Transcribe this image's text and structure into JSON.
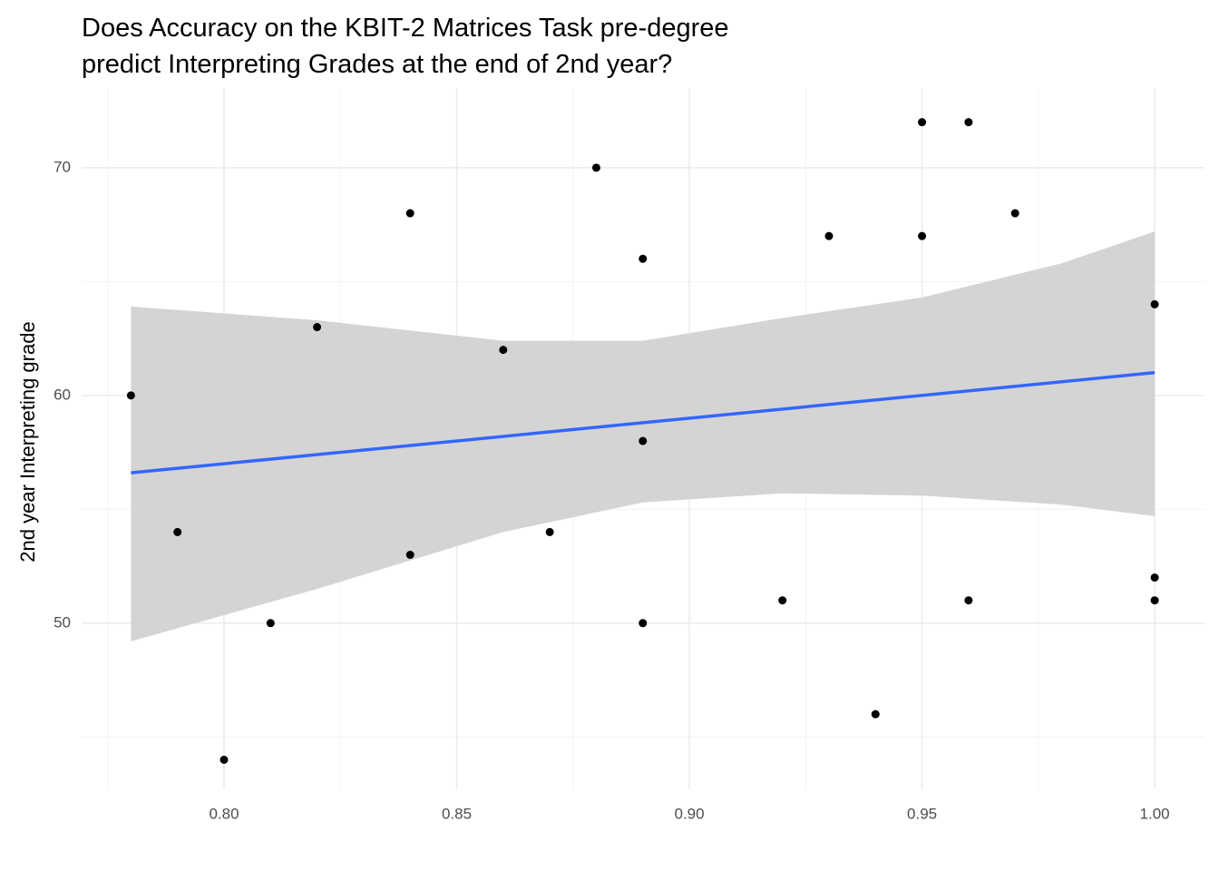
{
  "chart_data": {
    "type": "scatter",
    "title": [
      "Does Accuracy on the KBIT-2 Matrices Task pre-degree",
      "predict Interpreting Grades at the end of 2nd year?"
    ],
    "y_label": "2nd year Interpreting grade",
    "x": [
      0.78,
      0.79,
      0.8,
      0.81,
      0.82,
      0.84,
      0.84,
      0.86,
      0.87,
      0.88,
      0.89,
      0.89,
      0.89,
      0.92,
      0.93,
      0.94,
      0.95,
      0.95,
      0.96,
      0.96,
      0.97,
      1.0,
      1.0,
      1.0
    ],
    "y": [
      60,
      54,
      44,
      50,
      63,
      68,
      53,
      62,
      54,
      70,
      66,
      58,
      50,
      51,
      67,
      46,
      72,
      67,
      72,
      51,
      68,
      64,
      52,
      51
    ],
    "color": "#000000",
    "fit": {
      "x": [
        0.78,
        1.0
      ],
      "y": [
        56.6,
        61.0
      ],
      "color": "#3366ff"
    },
    "band": {
      "x": [
        0.78,
        0.82,
        0.86,
        0.89,
        0.92,
        0.95,
        0.98,
        1.0
      ],
      "lower": [
        49.2,
        51.5,
        54.0,
        55.3,
        55.7,
        55.6,
        55.2,
        54.7
      ],
      "upper": [
        63.9,
        63.3,
        62.4,
        62.4,
        63.4,
        64.3,
        65.8,
        67.2
      ],
      "color": "#d4d4d4"
    },
    "xlim": [
      0.7694,
      1.0107
    ],
    "ylim": [
      42.7,
      73.5
    ],
    "xticks": [
      {
        "value": 0.8,
        "label": "0.80"
      },
      0.85,
      {
        "value": 0.9,
        "label": "0.90"
      },
      0.95,
      {
        "value": 1.0,
        "label": "1.00"
      }
    ],
    "yticks": [
      50,
      60,
      70
    ],
    "xminor": [
      0.775,
      0.825,
      0.875,
      0.925,
      0.975
    ],
    "yminor": [
      45,
      55,
      65
    ],
    "grid": true
  }
}
